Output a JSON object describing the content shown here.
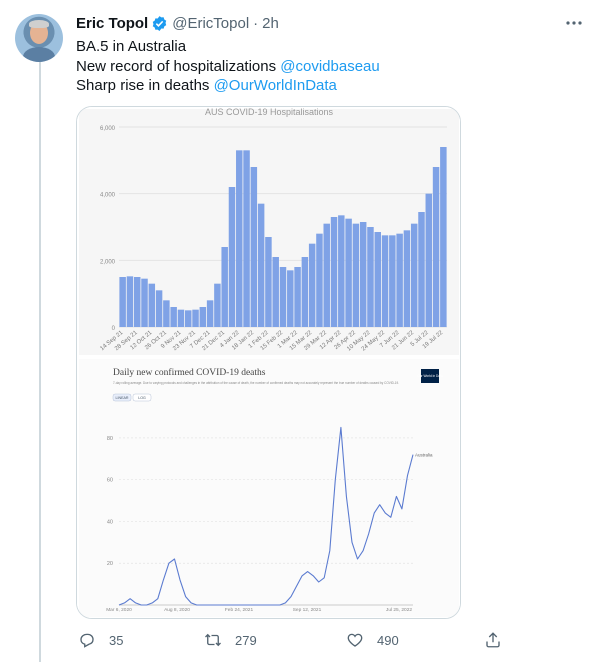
{
  "author": {
    "name": "Eric Topol",
    "handle": "@EricTopol",
    "separator": "·",
    "time": "2h"
  },
  "tweet": {
    "line1": "BA.5 in Australia",
    "line2_text": "New record of hospitalizations ",
    "line2_mention": "@covidbaseau",
    "line3_text": "Sharp rise in deaths ",
    "line3_mention": "@OurWorldInData"
  },
  "actions": {
    "replies": "35",
    "retweets": "279",
    "likes": "490"
  },
  "icons": {
    "verified": "verified-badge-icon",
    "more": "more-icon",
    "reply": "reply-icon",
    "retweet": "retweet-icon",
    "like": "heart-icon",
    "share": "share-icon"
  },
  "colors": {
    "accent": "#1d9bf0",
    "bars": "#7fa2e6",
    "deaths_line": "#5b7bd0"
  },
  "chart_data": [
    {
      "type": "bar",
      "title": "AUS COVID-19 Hospitalisations",
      "ylim": [
        0,
        6000
      ],
      "y_ticks": [
        "6,000",
        "4,000",
        "2,000",
        "0"
      ],
      "x_tick_labels": [
        "14 Sep 21",
        "28 Sep 21",
        "12 Oct 21",
        "26 Oct 21",
        "9 Nov 21",
        "23 Nov 21",
        "7 Dec 21",
        "21 Dec 21",
        "4 Jan 22",
        "18 Jan 22",
        "1 Feb 22",
        "15 Feb 22",
        "1 Mar 22",
        "15 Mar 22",
        "29 Mar 22",
        "12 Apr 22",
        "26 Apr 22",
        "10 May 22",
        "24 May 22",
        "7 Jun 22",
        "21 Jun 22",
        "5 Jul 22",
        "19 Jul 22"
      ],
      "values": [
        1500,
        1520,
        1500,
        1450,
        1300,
        1100,
        800,
        600,
        520,
        500,
        520,
        600,
        800,
        1300,
        2400,
        4200,
        5300,
        5300,
        4800,
        3700,
        2700,
        2100,
        1800,
        1700,
        1800,
        2100,
        2500,
        2800,
        3100,
        3300,
        3350,
        3250,
        3100,
        3150,
        3000,
        2850,
        2750,
        2750,
        2800,
        2900,
        3100,
        3450,
        4000,
        4800,
        5400
      ]
    },
    {
      "type": "line",
      "title": "Daily new confirmed COVID-19 deaths",
      "subtitle": "7-day rolling average. Due to varying protocols and challenges in the attribution of the cause of death, the number of confirmed deaths may not accurately represent the true number of deaths caused by COVID-19.",
      "toggle": [
        "LINEAR",
        "LOG"
      ],
      "logo": "Our World in Data",
      "ylim": [
        0,
        90
      ],
      "y_ticks": [
        "80",
        "60",
        "40",
        "20"
      ],
      "x_tick_labels": [
        "Mar 6, 2020",
        "Aug 8, 2020",
        "Feb 24, 2021",
        "Sep 12, 2021",
        "Jul 25, 2022"
      ],
      "series": [
        {
          "name": "Australia",
          "values": [
            0,
            1,
            3,
            1,
            0,
            0,
            1,
            3,
            12,
            20,
            22,
            12,
            4,
            1,
            0,
            0,
            0,
            0,
            0,
            0,
            0,
            0,
            0,
            0,
            0,
            0,
            0,
            0,
            0,
            0,
            1,
            4,
            9,
            14,
            16,
            14,
            11,
            13,
            26,
            60,
            85,
            52,
            30,
            22,
            26,
            34,
            44,
            48,
            44,
            42,
            52,
            46,
            62,
            72
          ]
        }
      ]
    }
  ]
}
